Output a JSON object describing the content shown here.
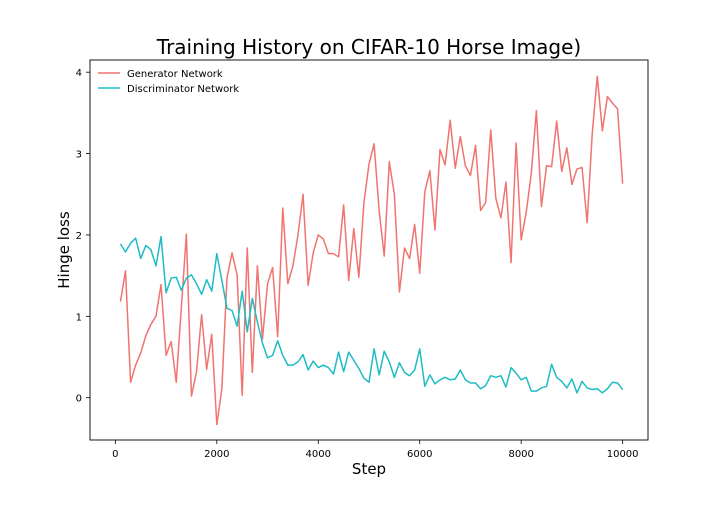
{
  "chart_data": {
    "type": "line",
    "title": "Training History on CIFAR-10 Horse Image)",
    "xlabel": "Step",
    "ylabel": "Hinge loss",
    "xlim": [
      -500,
      10500
    ],
    "ylim": [
      -0.52,
      4.15
    ],
    "xticks": [
      0,
      2000,
      4000,
      6000,
      8000,
      10000
    ],
    "yticks": [
      0,
      1,
      2,
      3,
      4
    ],
    "grid": false,
    "legend_position": "upper-left",
    "x": [
      100,
      200,
      300,
      400,
      500,
      600,
      700,
      800,
      900,
      1000,
      1100,
      1200,
      1300,
      1400,
      1500,
      1600,
      1700,
      1800,
      1900,
      2000,
      2100,
      2200,
      2300,
      2400,
      2500,
      2600,
      2700,
      2800,
      2900,
      3000,
      3100,
      3200,
      3300,
      3400,
      3500,
      3600,
      3700,
      3800,
      3900,
      4000,
      4100,
      4200,
      4300,
      4400,
      4500,
      4600,
      4700,
      4800,
      4900,
      5000,
      5100,
      5200,
      5300,
      5400,
      5500,
      5600,
      5700,
      5800,
      5900,
      6000,
      6100,
      6200,
      6300,
      6400,
      6500,
      6600,
      6700,
      6800,
      6900,
      7000,
      7100,
      7200,
      7300,
      7400,
      7500,
      7600,
      7700,
      7800,
      7900,
      8000,
      8100,
      8200,
      8300,
      8400,
      8500,
      8600,
      8700,
      8800,
      8900,
      9000,
      9100,
      9200,
      9300,
      9400,
      9500,
      9600,
      9700,
      9800,
      9900,
      10000
    ],
    "series": [
      {
        "name": "Generator Network",
        "color": "#f07470",
        "values": [
          1.18,
          1.56,
          0.19,
          0.4,
          0.55,
          0.76,
          0.9,
          1.0,
          1.39,
          0.52,
          0.69,
          0.19,
          1.1,
          2.01,
          0.02,
          0.32,
          1.02,
          0.35,
          0.78,
          -0.33,
          0.11,
          1.47,
          1.78,
          1.51,
          0.03,
          1.84,
          0.31,
          1.62,
          0.72,
          1.4,
          1.6,
          0.75,
          2.33,
          1.4,
          1.62,
          2.0,
          2.5,
          1.38,
          1.78,
          2.0,
          1.95,
          1.77,
          1.77,
          1.73,
          2.37,
          1.44,
          2.08,
          1.48,
          2.4,
          2.87,
          3.12,
          2.3,
          1.74,
          2.9,
          2.5,
          1.3,
          1.84,
          1.71,
          2.13,
          1.53,
          2.53,
          2.79,
          2.06,
          3.05,
          2.86,
          3.41,
          2.82,
          3.21,
          2.85,
          2.73,
          3.1,
          2.3,
          2.4,
          3.29,
          2.45,
          2.21,
          2.65,
          1.66,
          3.13,
          1.94,
          2.28,
          2.76,
          3.53,
          2.35,
          2.85,
          2.84,
          3.4,
          2.78,
          3.07,
          2.62,
          2.81,
          2.83,
          2.15,
          3.24,
          3.95,
          3.28,
          3.7,
          3.62,
          3.55,
          2.63
        ]
      },
      {
        "name": "Discriminator Network",
        "color": "#1fbcc4",
        "values": [
          1.89,
          1.79,
          1.9,
          1.96,
          1.71,
          1.87,
          1.82,
          1.62,
          1.98,
          1.29,
          1.47,
          1.48,
          1.32,
          1.47,
          1.51,
          1.4,
          1.27,
          1.45,
          1.31,
          1.77,
          1.44,
          1.1,
          1.07,
          0.88,
          1.31,
          0.81,
          1.22,
          0.93,
          0.67,
          0.49,
          0.52,
          0.7,
          0.52,
          0.4,
          0.4,
          0.44,
          0.53,
          0.34,
          0.45,
          0.37,
          0.4,
          0.37,
          0.29,
          0.56,
          0.32,
          0.56,
          0.46,
          0.36,
          0.24,
          0.19,
          0.6,
          0.28,
          0.57,
          0.44,
          0.25,
          0.43,
          0.31,
          0.27,
          0.34,
          0.6,
          0.14,
          0.28,
          0.17,
          0.22,
          0.25,
          0.22,
          0.23,
          0.34,
          0.22,
          0.18,
          0.18,
          0.11,
          0.15,
          0.27,
          0.25,
          0.27,
          0.13,
          0.37,
          0.3,
          0.22,
          0.25,
          0.08,
          0.08,
          0.12,
          0.14,
          0.41,
          0.25,
          0.2,
          0.12,
          0.23,
          0.06,
          0.2,
          0.12,
          0.1,
          0.11,
          0.06,
          0.11,
          0.19,
          0.18,
          0.1
        ]
      }
    ]
  }
}
